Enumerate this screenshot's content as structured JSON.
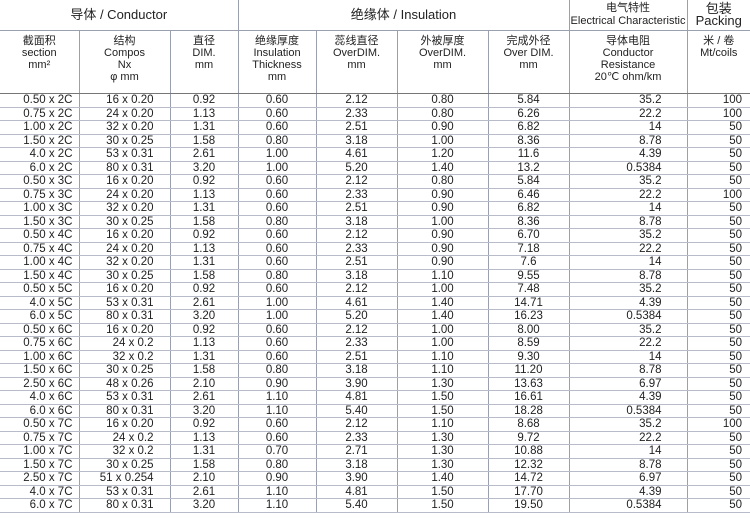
{
  "header": {
    "groups": [
      {
        "label": "导体 / Conductor",
        "span": 3
      },
      {
        "label": "绝缘体 / Insulation",
        "span": 4
      },
      {
        "label": "电气特性\nElectrical Characteristic",
        "span": 1
      },
      {
        "label": "包装\nPacking",
        "span": 1
      }
    ],
    "columns": [
      "截面积\nsection\nmm²",
      "结构\nCompos\nNx\nφ mm",
      "直径\nDIM.\nmm",
      "绝缘厚度\nInsulation\nThickness\nmm",
      "蕊线直径\nOverDIM.\nmm",
      "外被厚度\nOverDIM.\nmm",
      "完成外径\nOver DIM.\nmm",
      "导体电阻\nConductor\nResistance\n20℃ ohm/km",
      "米 / 卷\nMt/coils"
    ]
  },
  "rows": [
    [
      "0.50 x 2C",
      "16 x 0.20",
      "0.92",
      "0.60",
      "2.12",
      "0.80",
      "5.84",
      "35.2",
      "100"
    ],
    [
      "0.75 x 2C",
      "24 x 0.20",
      "1.13",
      "0.60",
      "2.33",
      "0.80",
      "6.26",
      "22.2",
      "100"
    ],
    [
      "1.00 x 2C",
      "32 x 0.20",
      "1.31",
      "0.60",
      "2.51",
      "0.90",
      "6.82",
      "14",
      "50"
    ],
    [
      "1.50 x 2C",
      "30 x 0.25",
      "1.58",
      "0.80",
      "3.18",
      "1.00",
      "8.36",
      "8.78",
      "50"
    ],
    [
      "4.0 x 2C",
      "53 x 0.31",
      "2.61",
      "1.00",
      "4.61",
      "1.20",
      "11.6",
      "4.39",
      "50"
    ],
    [
      "6.0 x 2C",
      "80 x 0.31",
      "3.20",
      "1.00",
      "5.20",
      "1.40",
      "13.2",
      "0.5384",
      "50"
    ],
    [
      "0.50 x 3C",
      "16 x 0.20",
      "0.92",
      "0.60",
      "2.12",
      "0.80",
      "5.84",
      "35.2",
      "50"
    ],
    [
      "0.75 x 3C",
      "24 x 0.20",
      "1.13",
      "0.60",
      "2.33",
      "0.90",
      "6.46",
      "22.2",
      "100"
    ],
    [
      "1.00 x 3C",
      "32 x 0.20",
      "1.31",
      "0.60",
      "2.51",
      "0.90",
      "6.82",
      "14",
      "50"
    ],
    [
      "1.50 x 3C",
      "30 x 0.25",
      "1.58",
      "0.80",
      "3.18",
      "1.00",
      "8.36",
      "8.78",
      "50"
    ],
    [
      "0.50 x 4C",
      "16 x 0.20",
      "0.92",
      "0.60",
      "2.12",
      "0.90",
      "6.70",
      "35.2",
      "50"
    ],
    [
      "0.75 x 4C",
      "24 x 0.20",
      "1.13",
      "0.60",
      "2.33",
      "0.90",
      "7.18",
      "22.2",
      "50"
    ],
    [
      "1.00 x 4C",
      "32 x 0.20",
      "1.31",
      "0.60",
      "2.51",
      "0.90",
      "7.6",
      "14",
      "50"
    ],
    [
      "1.50 x 4C",
      "30 x 0.25",
      "1.58",
      "0.80",
      "3.18",
      "1.10",
      "9.55",
      "8.78",
      "50"
    ],
    [
      "0.50 x 5C",
      "16 x 0.20",
      "0.92",
      "0.60",
      "2.12",
      "1.00",
      "7.48",
      "35.2",
      "50"
    ],
    [
      "4.0 x 5C",
      "53 x 0.31",
      "2.61",
      "1.00",
      "4.61",
      "1.40",
      "14.71",
      "4.39",
      "50"
    ],
    [
      "6.0 x 5C",
      "80 x 0.31",
      "3.20",
      "1.00",
      "5.20",
      "1.40",
      "16.23",
      "0.5384",
      "50"
    ],
    [
      "0.50 x 6C",
      "16 x 0.20",
      "0.92",
      "0.60",
      "2.12",
      "1.00",
      "8.00",
      "35.2",
      "50"
    ],
    [
      "0.75 x 6C",
      "24 x 0.2",
      "1.13",
      "0.60",
      "2.33",
      "1.00",
      "8.59",
      "22.2",
      "50"
    ],
    [
      "1.00 x 6C",
      "32 x 0.2",
      "1.31",
      "0.60",
      "2.51",
      "1.10",
      "9.30",
      "14",
      "50"
    ],
    [
      "1.50 x 6C",
      "30 x 0.25",
      "1.58",
      "0.80",
      "3.18",
      "1.10",
      "11.20",
      "8.78",
      "50"
    ],
    [
      "2.50 x 6C",
      "48 x 0.26",
      "2.10",
      "0.90",
      "3.90",
      "1.30",
      "13.63",
      "6.97",
      "50"
    ],
    [
      "4.0 x 6C",
      "53 x 0.31",
      "2.61",
      "1.10",
      "4.81",
      "1.50",
      "16.61",
      "4.39",
      "50"
    ],
    [
      "6.0 x 6C",
      "80 x 0.31",
      "3.20",
      "1.10",
      "5.40",
      "1.50",
      "18.28",
      "0.5384",
      "50"
    ],
    [
      "0.50 x 7C",
      "16 x 0.20",
      "0.92",
      "0.60",
      "2.12",
      "1.10",
      "8.68",
      "35.2",
      "100"
    ],
    [
      "0.75 x 7C",
      "24 x 0.2",
      "1.13",
      "0.60",
      "2.33",
      "1.30",
      "9.72",
      "22.2",
      "50"
    ],
    [
      "1.00 x 7C",
      "32 x 0.2",
      "1.31",
      "0.70",
      "2.71",
      "1.30",
      "10.88",
      "14",
      "50"
    ],
    [
      "1.50 x 7C",
      "30 x 0.25",
      "1.58",
      "0.80",
      "3.18",
      "1.30",
      "12.32",
      "8.78",
      "50"
    ],
    [
      "2.50 x 7C",
      "51 x 0.254",
      "2.10",
      "0.90",
      "3.90",
      "1.40",
      "14.72",
      "6.97",
      "50"
    ],
    [
      "4.0 x 7C",
      "53 x 0.31",
      "2.61",
      "1.10",
      "4.81",
      "1.50",
      "17.70",
      "4.39",
      "50"
    ],
    [
      "6.0 x 7C",
      "80 x 0.31",
      "3.20",
      "1.10",
      "5.40",
      "1.50",
      "19.50",
      "0.5384",
      "50"
    ]
  ]
}
